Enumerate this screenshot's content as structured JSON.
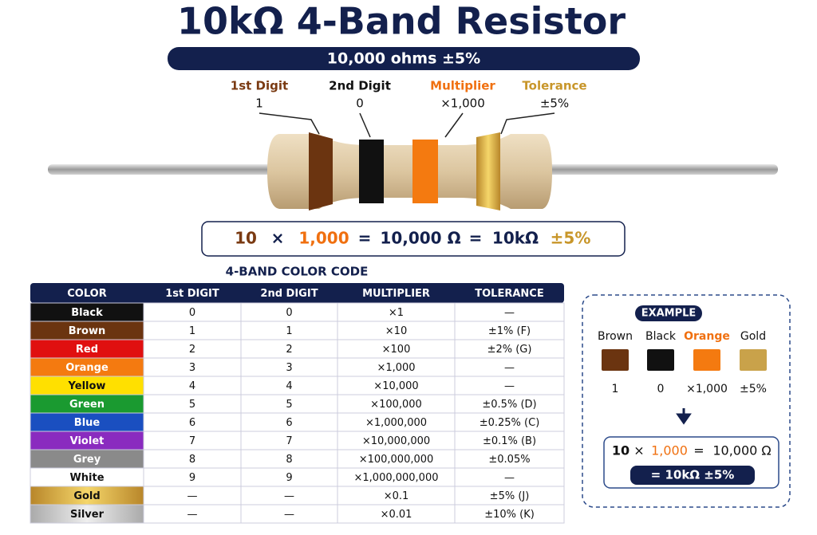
{
  "title": "10kΩ  4-Band Resistor",
  "subtitle": "10,000 ohms ±5%",
  "bands": [
    {
      "label": "1st Digit",
      "value": "1"
    },
    {
      "label": "2nd Digit",
      "value": "0"
    },
    {
      "label": "Multiplier",
      "value": "×1,000"
    },
    {
      "label": "Tolerance",
      "value": "±5%"
    }
  ],
  "formula": [
    "10",
    "×",
    "1,000",
    "=",
    "10,000 Ω",
    "=",
    "10kΩ",
    "±5%"
  ],
  "table": {
    "title": "4-BAND COLOR CODE",
    "header": [
      "COLOR",
      "1st DIGIT",
      "2nd DIGIT",
      "MULTIPLIER",
      "TOLERANCE"
    ],
    "rows": [
      [
        "Black",
        "0",
        "0",
        "×1",
        "—"
      ],
      [
        "Brown",
        "1",
        "1",
        "×10",
        "±1% (F)"
      ],
      [
        "Red",
        "2",
        "2",
        "×100",
        "±2% (G)"
      ],
      [
        "Orange",
        "3",
        "3",
        "×1,000",
        "—"
      ],
      [
        "Yellow",
        "4",
        "4",
        "×10,000",
        "—"
      ],
      [
        "Green",
        "5",
        "5",
        "×100,000",
        "±0.5% (D)"
      ],
      [
        "Blue",
        "6",
        "6",
        "×1,000,000",
        "±0.25% (C)"
      ],
      [
        "Violet",
        "7",
        "7",
        "×10,000,000",
        "±0.1% (B)"
      ],
      [
        "Grey",
        "8",
        "8",
        "×100,000,000",
        "±0.05%"
      ],
      [
        "White",
        "9",
        "9",
        "×1,000,000,000",
        "—"
      ],
      [
        "Gold",
        "—",
        "—",
        "×0.1",
        "±5% (J)"
      ],
      [
        "Silver",
        "—",
        "—",
        "×0.01",
        "±10% (K)"
      ]
    ]
  },
  "example": {
    "title": "EXAMPLE",
    "colors": [
      "Brown",
      "Black",
      "Orange",
      "Gold"
    ],
    "values": [
      "1",
      "0",
      "×1,000",
      "±5%"
    ],
    "formula": [
      "10",
      "×",
      "1,000",
      "=",
      "10,000 Ω"
    ],
    "result": "= 10kΩ ±5%"
  }
}
